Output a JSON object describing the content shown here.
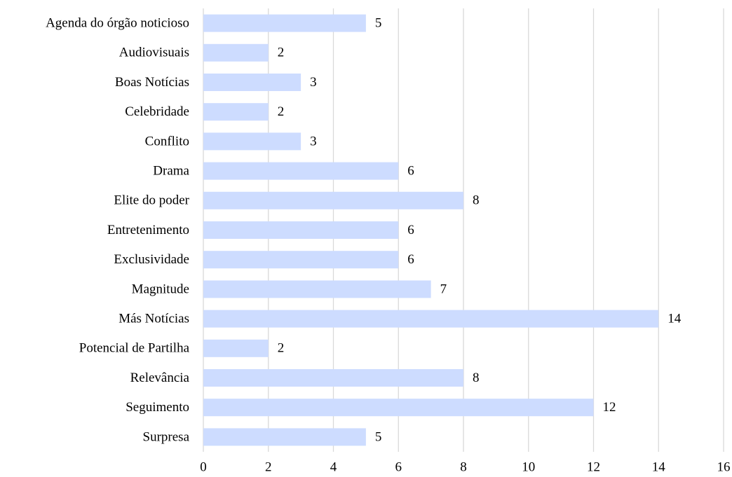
{
  "chart_data": {
    "type": "bar",
    "categories": [
      "Agenda do órgão noticioso",
      "Audiovisuais",
      "Boas Notícias",
      "Celebridade",
      "Conflito",
      "Drama",
      "Elite do poder",
      "Entretenimento",
      "Exclusividade",
      "Magnitude",
      "Más Notícias",
      "Potencial de Partilha",
      "Relevância",
      "Seguimento",
      "Surpresa"
    ],
    "values": [
      5,
      2,
      3,
      2,
      3,
      6,
      8,
      6,
      6,
      7,
      14,
      2,
      8,
      12,
      5
    ],
    "color": "#cddcff",
    "xlim": [
      0,
      16
    ],
    "xticks": [
      0,
      2,
      4,
      6,
      8,
      10,
      12,
      14,
      16
    ],
    "grid": true
  }
}
